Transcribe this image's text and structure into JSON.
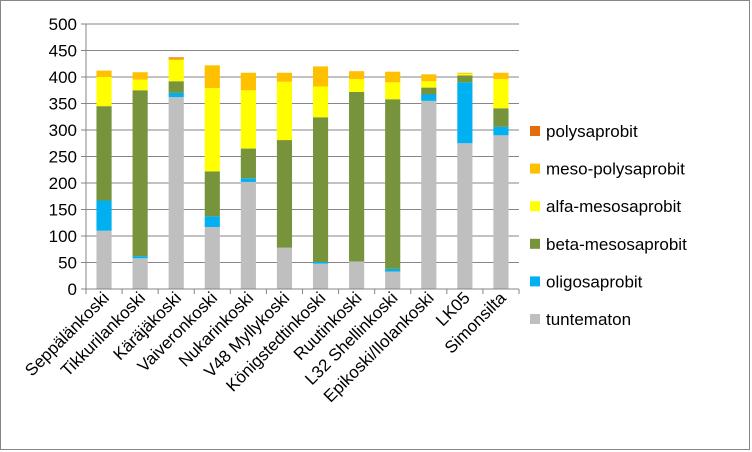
{
  "chart_data": {
    "type": "bar",
    "stacked": true,
    "categories": [
      "Seppälänkoski",
      "Tikkurilankoski",
      "Käräjäkoski",
      "Vaiveronkoski",
      "Nukarinkoski",
      "V48 Myllykoski",
      "Königstedtinkoski",
      "Ruutinkoski",
      "L32 Shellinkoski",
      "Epikoski/Ilolankoski",
      "LK05",
      "Simonsilta"
    ],
    "series": [
      {
        "name": "tuntematon",
        "color": "#BFBFBF",
        "values": [
          110,
          58,
          362,
          117,
          202,
          78,
          48,
          52,
          33,
          355,
          275,
          290
        ]
      },
      {
        "name": "oligosaprobit",
        "color": "#00B0F0",
        "values": [
          57,
          4,
          8,
          20,
          7,
          0,
          3,
          0,
          5,
          12,
          115,
          16
        ]
      },
      {
        "name": "beta-mesosaprobit",
        "color": "#77933C",
        "values": [
          178,
          313,
          22,
          85,
          56,
          203,
          273,
          320,
          320,
          13,
          13,
          35
        ]
      },
      {
        "name": "alfa-mesosaprobit",
        "color": "#FFFF00",
        "values": [
          55,
          20,
          40,
          157,
          110,
          110,
          58,
          24,
          32,
          12,
          3,
          55
        ]
      },
      {
        "name": "meso-polysaprobit",
        "color": "#FFC000",
        "values": [
          12,
          14,
          3,
          43,
          33,
          17,
          38,
          15,
          20,
          13,
          2,
          12
        ]
      },
      {
        "name": "polysaprobit",
        "color": "#E46C0A",
        "values": [
          0,
          0,
          2,
          0,
          0,
          0,
          0,
          0,
          0,
          0,
          0,
          0
        ]
      }
    ],
    "ylim": [
      0,
      500
    ],
    "yticks": [
      0,
      50,
      100,
      150,
      200,
      250,
      300,
      350,
      400,
      450,
      500
    ],
    "grid": true,
    "legend_position": "right",
    "legend_order": [
      "polysaprobit",
      "meso-polysaprobit",
      "alfa-mesosaprobit",
      "beta-mesosaprobit",
      "oligosaprobit",
      "tuntematon"
    ]
  }
}
